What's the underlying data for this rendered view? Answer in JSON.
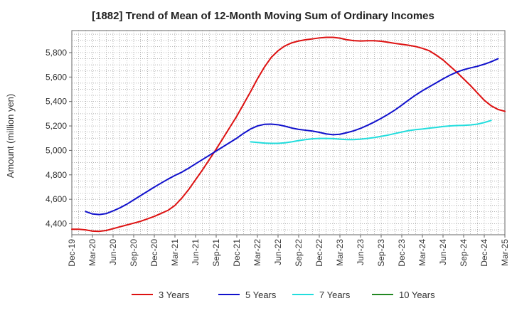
{
  "chart_data": {
    "type": "line",
    "title": "[1882]  Trend of Mean of 12-Month Moving Sum of Ordinary Incomes",
    "xlabel": "",
    "ylabel": "Amount (million yen)",
    "x_ticks": [
      "Dec-19",
      "Mar-20",
      "Jun-20",
      "Sep-20",
      "Dec-20",
      "Mar-21",
      "Jun-21",
      "Sep-21",
      "Dec-21",
      "Mar-22",
      "Jun-22",
      "Sep-22",
      "Dec-22",
      "Mar-23",
      "Jun-23",
      "Sep-23",
      "Dec-23",
      "Mar-24",
      "Jun-24",
      "Sep-24",
      "Dec-24",
      "Mar-25"
    ],
    "y_ticks": [
      4400,
      4600,
      4800,
      5000,
      5200,
      5400,
      5600,
      5800
    ],
    "y_tick_labels": [
      "4,400",
      "4,600",
      "4,800",
      "5,000",
      "5,200",
      "5,400",
      "5,600",
      "5,800"
    ],
    "xlim": [
      0,
      63
    ],
    "ylim": [
      4310,
      5980
    ],
    "grid": true,
    "legend_position": "bottom",
    "series": [
      {
        "name": "3 Years",
        "color": "#dd1111",
        "start_index": 0,
        "values": [
          4355,
          4355,
          4350,
          4340,
          4338,
          4345,
          4360,
          4375,
          4390,
          4405,
          4420,
          4440,
          4460,
          4485,
          4510,
          4550,
          4610,
          4680,
          4760,
          4840,
          4925,
          5010,
          5100,
          5190,
          5280,
          5380,
          5480,
          5585,
          5680,
          5760,
          5815,
          5855,
          5880,
          5895,
          5905,
          5912,
          5920,
          5925,
          5925,
          5918,
          5905,
          5898,
          5895,
          5897,
          5897,
          5893,
          5885,
          5875,
          5868,
          5860,
          5850,
          5835,
          5815,
          5780,
          5740,
          5690,
          5640,
          5585,
          5530,
          5470,
          5410,
          5365,
          5335,
          5320
        ]
      },
      {
        "name": "5 Years",
        "color": "#1111cc",
        "start_index": 2,
        "values": [
          4500,
          4480,
          4475,
          4483,
          4505,
          4530,
          4560,
          4595,
          4630,
          4665,
          4700,
          4733,
          4765,
          4795,
          4822,
          4855,
          4890,
          4925,
          4960,
          4995,
          5030,
          5065,
          5100,
          5140,
          5175,
          5200,
          5213,
          5215,
          5210,
          5198,
          5183,
          5172,
          5165,
          5158,
          5148,
          5135,
          5128,
          5132,
          5145,
          5160,
          5180,
          5205,
          5232,
          5262,
          5295,
          5330,
          5370,
          5412,
          5452,
          5488,
          5520,
          5552,
          5585,
          5615,
          5640,
          5660,
          5675,
          5688,
          5705,
          5725,
          5750
        ]
      },
      {
        "name": "7 Years",
        "color": "#22dddd",
        "start_index": 26,
        "values": [
          5070,
          5065,
          5060,
          5058,
          5058,
          5062,
          5070,
          5080,
          5088,
          5095,
          5098,
          5098,
          5096,
          5092,
          5088,
          5088,
          5092,
          5098,
          5105,
          5115,
          5125,
          5138,
          5150,
          5162,
          5170,
          5175,
          5182,
          5188,
          5195,
          5200,
          5203,
          5205,
          5208,
          5215,
          5228,
          5245
        ]
      },
      {
        "name": "10 Years",
        "color": "#228822",
        "start_index": 0,
        "values": []
      }
    ]
  }
}
